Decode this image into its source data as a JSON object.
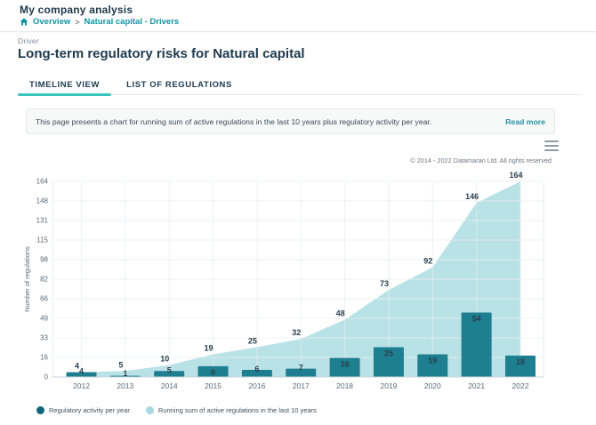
{
  "header": {
    "app_title": "My company analysis",
    "breadcrumb": {
      "home": "Overview",
      "separator": ">",
      "current": "Natural capital - Drivers"
    }
  },
  "page": {
    "kicker": "Driver",
    "title_bold": "Long-term regulatory risks for",
    "title_regular": "Natural capital"
  },
  "tabs": [
    {
      "label": "TIMELINE VIEW",
      "active": true
    },
    {
      "label": "LIST OF REGULATIONS",
      "active": false
    }
  ],
  "banner": {
    "text": "This page presents a chart for running sum of active regulations in the last 10 years plus regulatory activity per year.",
    "action_label": "Read more"
  },
  "chart": {
    "copyright": "© 2014 - 2022 Datamaran Ltd. All rights reserved",
    "menu_icon": "hamburger-icon"
  },
  "colors": {
    "accent_teal": "#1295a3",
    "tab_underline": "#38c5bc",
    "bar": "#1e7f90",
    "area": "#b9e2e6",
    "legend_bar_dot": "#0e6678",
    "legend_area_dot": "#a6d9df",
    "grid": "#e8edf1",
    "axis_line": "#c9d4da",
    "label_text": "#2b3f4d"
  },
  "chart_data": {
    "type": "bar+area",
    "categories": [
      "2012",
      "2013",
      "2014",
      "2015",
      "2016",
      "2017",
      "2018",
      "2019",
      "2020",
      "2021",
      "2022"
    ],
    "series": [
      {
        "name": "Regulatory activity per year",
        "type": "bar",
        "color": "#1e7f90",
        "legend_color": "#0e6678",
        "values": [
          4,
          1,
          5,
          9,
          6,
          7,
          16,
          25,
          19,
          54,
          18
        ]
      },
      {
        "name": "Running sum of active regulations in the last 10 years",
        "type": "area",
        "color": "#b9e2e6",
        "legend_color": "#a6d9df",
        "values": [
          4,
          5,
          10,
          19,
          25,
          32,
          48,
          73,
          92,
          146,
          164
        ]
      }
    ],
    "title": "",
    "xlabel": "",
    "ylabel": "Number of regulations",
    "ylim": [
      0,
      164
    ],
    "yticks": [
      0,
      16,
      33,
      49,
      66,
      82,
      98,
      115,
      131,
      148,
      164
    ],
    "grid": true,
    "legend_position": "bottom-left",
    "data_labels": true
  }
}
